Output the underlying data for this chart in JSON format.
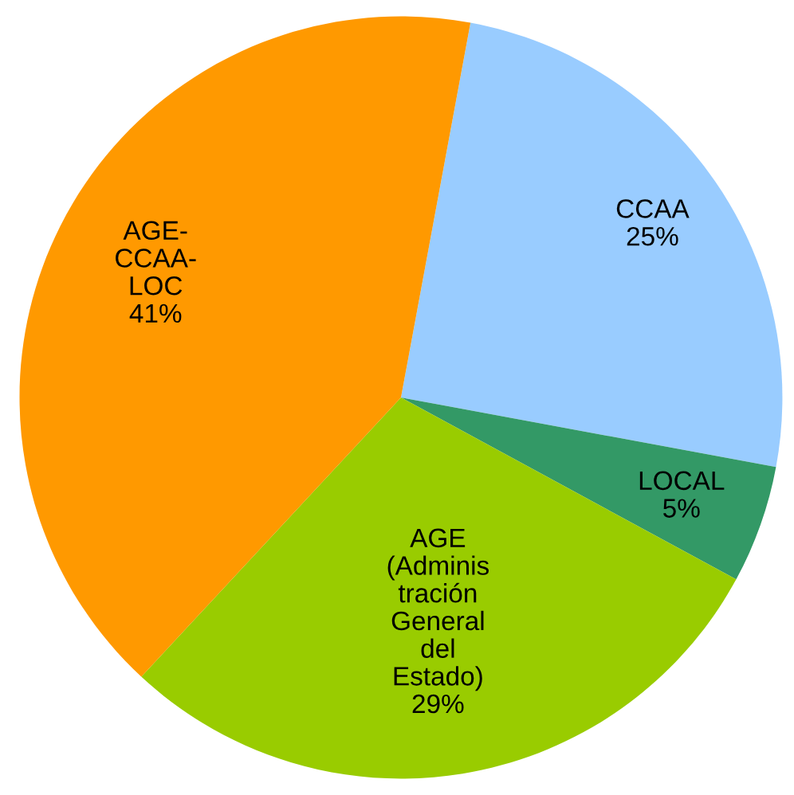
{
  "chart_data": {
    "type": "pie",
    "categories": [
      "CCAA",
      "LOCAL",
      "AGE\n(Adminis\ntración\nGeneral\ndel\nEstado)",
      "AGE-\nCCAA-\nLOC"
    ],
    "values": [
      25,
      5,
      29,
      41
    ],
    "colors": [
      "#99ccff",
      "#339966",
      "#99cc00",
      "#ff9900"
    ],
    "value_labels": [
      "25%",
      "5%",
      "29%",
      "41%"
    ]
  }
}
